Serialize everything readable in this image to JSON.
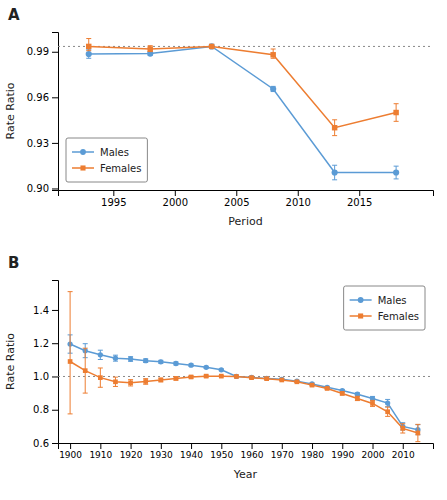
{
  "chart_data": [
    {
      "type": "line",
      "title": "A",
      "xlabel": "Period",
      "ylabel": "Rate Ratio",
      "xlim": [
        1990.5,
        2021
      ],
      "ylim": [
        0.899,
        1.003
      ],
      "xticks": [
        1995,
        2000,
        2005,
        2010,
        2015
      ],
      "yticks": [
        {
          "value": 0.9,
          "label": "0.90"
        },
        0.93,
        0.96,
        0.99
      ],
      "ref_line": 0.9935,
      "grid": false,
      "legend": "lower left",
      "x": [
        1993,
        1998,
        2003,
        2008,
        2013,
        2018
      ],
      "series": [
        {
          "name": "Males",
          "color": "#5b9bd5",
          "marker": "circle",
          "values": [
            0.9885,
            0.9888,
            0.9935,
            0.9655,
            0.9105,
            0.9105
          ],
          "error_low": [
            0.0028,
            0.0013,
            0.0,
            0.0017,
            0.0048,
            0.0042
          ],
          "error_high": [
            0.0028,
            0.0013,
            0.0,
            0.0017,
            0.0048,
            0.0042
          ]
        },
        {
          "name": "Females",
          "color": "#ed7d31",
          "marker": "square",
          "values": [
            0.9935,
            0.9918,
            0.9935,
            0.988,
            0.94,
            0.95
          ],
          "error_low": [
            0.0028,
            0.0017,
            0.0,
            0.0023,
            0.0052,
            0.0058
          ],
          "error_high": [
            0.0052,
            0.0022,
            0.0,
            0.0038,
            0.0052,
            0.0058
          ]
        }
      ]
    },
    {
      "type": "line",
      "title": "B",
      "xlabel": "Year",
      "ylabel": "Rate Ratio",
      "xlim": [
        1896,
        2020
      ],
      "ylim": [
        0.6,
        1.58
      ],
      "xticks": [
        1900,
        1910,
        1920,
        1930,
        1940,
        1950,
        1960,
        1970,
        1980,
        1990,
        2000,
        2010
      ],
      "yticks": [
        0.6,
        0.8,
        {
          "value": 1.0,
          "label": "1.0"
        },
        1.2,
        1.4
      ],
      "ref_line": 1.0,
      "grid": false,
      "legend": "upper right",
      "x": [
        1900,
        1905,
        1910,
        1915,
        1920,
        1925,
        1930,
        1935,
        1940,
        1945,
        1950,
        1955,
        1960,
        1965,
        1970,
        1975,
        1980,
        1985,
        1990,
        1995,
        2000,
        2005,
        2010,
        2015
      ],
      "series": [
        {
          "name": "Males",
          "color": "#5b9bd5",
          "marker": "circle",
          "values": [
            1.195,
            1.155,
            1.13,
            1.11,
            1.105,
            1.095,
            1.088,
            1.078,
            1.068,
            1.055,
            1.04,
            1.0,
            0.994,
            0.988,
            0.983,
            0.972,
            0.955,
            0.935,
            0.915,
            0.893,
            0.867,
            0.84,
            0.7,
            0.68
          ],
          "error_low": [
            0.055,
            0.042,
            0.028,
            0.018,
            0.014,
            0.011,
            0.009,
            0.009,
            0.007,
            0.006,
            0.005,
            0.0,
            0.004,
            0.004,
            0.004,
            0.004,
            0.005,
            0.006,
            0.007,
            0.009,
            0.013,
            0.022,
            0.022,
            0.03
          ],
          "error_high": [
            0.055,
            0.042,
            0.028,
            0.018,
            0.014,
            0.011,
            0.009,
            0.009,
            0.007,
            0.006,
            0.005,
            0.0,
            0.004,
            0.004,
            0.004,
            0.004,
            0.005,
            0.006,
            0.007,
            0.009,
            0.013,
            0.022,
            0.022,
            0.03
          ]
        },
        {
          "name": "Females",
          "color": "#ed7d31",
          "marker": "square",
          "values": [
            1.09,
            1.035,
            0.993,
            0.968,
            0.962,
            0.97,
            0.979,
            0.988,
            0.997,
            1.002,
            1.002,
            1.0,
            0.993,
            0.987,
            0.979,
            0.968,
            0.948,
            0.928,
            0.898,
            0.868,
            0.838,
            0.788,
            0.688,
            0.66
          ],
          "error_low": [
            0.315,
            0.135,
            0.058,
            0.028,
            0.019,
            0.017,
            0.011,
            0.009,
            0.007,
            0.006,
            0.004,
            0.0,
            0.004,
            0.004,
            0.004,
            0.004,
            0.005,
            0.006,
            0.009,
            0.013,
            0.018,
            0.028,
            0.028,
            0.052
          ],
          "error_high": [
            0.42,
            0.135,
            0.058,
            0.028,
            0.019,
            0.017,
            0.011,
            0.009,
            0.007,
            0.006,
            0.004,
            0.0,
            0.004,
            0.004,
            0.004,
            0.004,
            0.005,
            0.006,
            0.009,
            0.013,
            0.018,
            0.028,
            0.028,
            0.052
          ]
        }
      ]
    }
  ]
}
